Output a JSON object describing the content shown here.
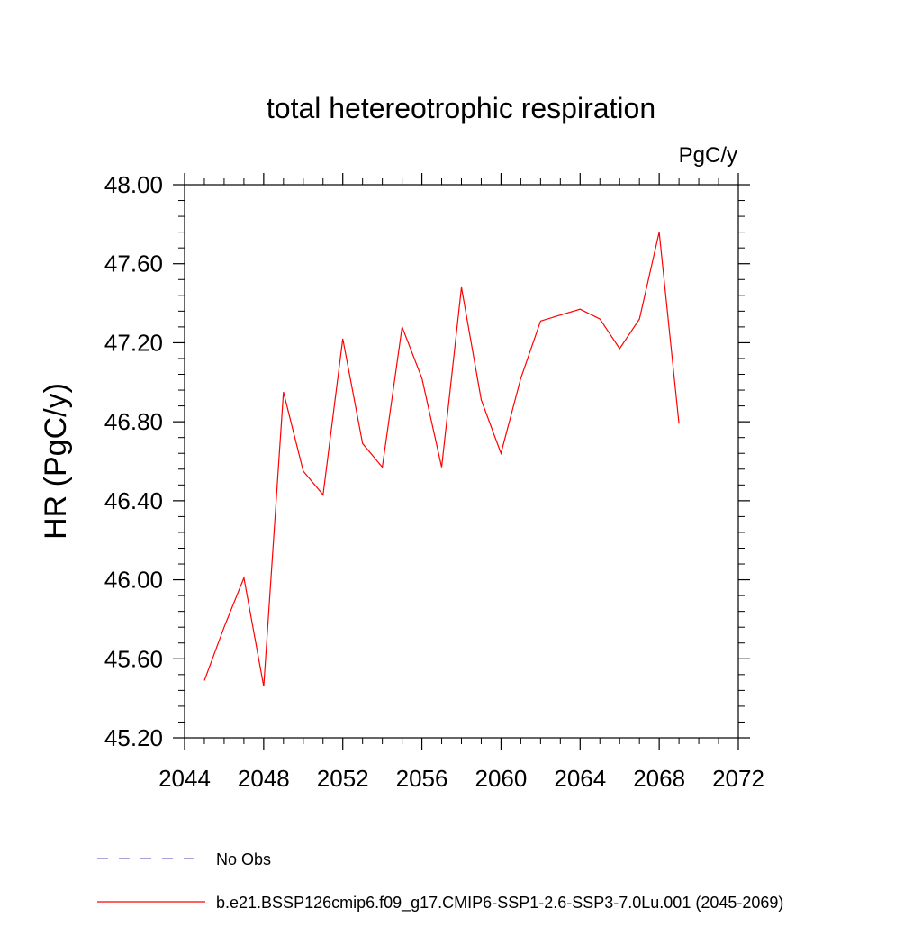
{
  "chart_data": {
    "type": "line",
    "title": "total hetereotrophic respiration",
    "units_label": "PgC/y",
    "ylabel": "HR  (PgC/y)",
    "xlabel": "",
    "xlim": [
      2044,
      2072
    ],
    "ylim": [
      45.2,
      48.0
    ],
    "x_ticks": [
      2044,
      2048,
      2052,
      2056,
      2060,
      2064,
      2068,
      2072
    ],
    "x_tick_labels": [
      "2044",
      "2048",
      "2052",
      "2056",
      "2060",
      "2064",
      "2068",
      "2072"
    ],
    "y_ticks": [
      45.2,
      45.6,
      46.0,
      46.4,
      46.8,
      47.2,
      47.6,
      48.0
    ],
    "y_tick_labels": [
      "45.20",
      "45.60",
      "46.00",
      "46.40",
      "46.80",
      "47.20",
      "47.60",
      "48.00"
    ],
    "grid": false,
    "legend_position": "bottom",
    "series": [
      {
        "name": "b.e21.BSSP126cmip6.f09_g17.CMIP6-SSP1-2.6-SSP3-7.0Lu.001 (2045-2069)",
        "color": "#ff0000",
        "dash": "solid",
        "x": [
          2045,
          2046,
          2047,
          2048,
          2049,
          2050,
          2051,
          2052,
          2053,
          2054,
          2055,
          2056,
          2057,
          2058,
          2059,
          2060,
          2061,
          2062,
          2063,
          2064,
          2065,
          2066,
          2067,
          2068,
          2069
        ],
        "values": [
          45.49,
          45.76,
          46.01,
          45.46,
          46.95,
          46.55,
          46.43,
          47.22,
          46.69,
          46.57,
          47.28,
          47.02,
          46.57,
          47.48,
          46.91,
          46.64,
          47.02,
          47.31,
          47.34,
          47.37,
          47.32,
          47.17,
          47.32,
          47.76,
          46.79
        ]
      }
    ],
    "legend": [
      {
        "label": "No Obs",
        "color": "#7b68c8",
        "dash": "dashed"
      },
      {
        "label": "b.e21.BSSP126cmip6.f09_g17.CMIP6-SSP1-2.6-SSP3-7.0Lu.001 (2045-2069)",
        "color": "#ff0000",
        "dash": "solid"
      }
    ]
  }
}
